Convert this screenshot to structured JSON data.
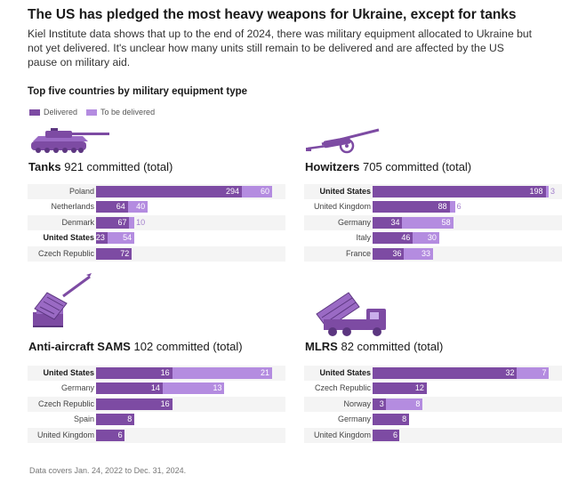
{
  "title": "The US has pledged the most heavy weapons for Ukraine, except for tanks",
  "subtitle": "Kiel Institute data shows that up to the end of 2024, there was military equipment allocated to Ukraine but not yet delivered. It's unclear how many units still remain to be delivered and are affected by the US pause on military aid.",
  "section_heading": "Top five countries by military equipment type",
  "legend": [
    {
      "label": "Delivered",
      "color": "#7d4ba3"
    },
    {
      "label": "To be delivered",
      "color": "#b48ce0"
    }
  ],
  "note": "Data covers Jan. 24, 2022 to Dec. 31, 2024.",
  "colors": {
    "delivered": "#7d4ba3",
    "to_be_delivered": "#b48ce0",
    "outside_label": "#a27fcc"
  },
  "chart_data": [
    {
      "type": "bar",
      "title": "Tanks",
      "subtitle": "921 committed (total)",
      "icon": "tank-icon",
      "categories": [
        "Poland",
        "Netherlands",
        "Denmark",
        "United States",
        "Czech Republic"
      ],
      "highlight": "United States",
      "series": [
        {
          "name": "Delivered",
          "values": [
            294,
            64,
            67,
            23,
            72
          ]
        },
        {
          "name": "To be delivered",
          "values": [
            60,
            40,
            10,
            54,
            0
          ]
        }
      ],
      "xlim": [
        0,
        354
      ]
    },
    {
      "type": "bar",
      "title": "Howitzers",
      "subtitle": "705 committed (total)",
      "icon": "howitzer-icon",
      "categories": [
        "United States",
        "United Kingdom",
        "Germany",
        "Italy",
        "France"
      ],
      "highlight": "United States",
      "series": [
        {
          "name": "Delivered",
          "values": [
            198,
            88,
            34,
            46,
            36
          ]
        },
        {
          "name": "To be delivered",
          "values": [
            3,
            6,
            58,
            30,
            33
          ]
        }
      ],
      "xlim": [
        0,
        201
      ]
    },
    {
      "type": "bar",
      "title": "Anti-aircraft SAMS",
      "subtitle": "102 committed (total)",
      "icon": "missile-launcher-icon",
      "categories": [
        "United States",
        "Germany",
        "Czech Republic",
        "Spain",
        "United Kingdom"
      ],
      "highlight": "United States",
      "series": [
        {
          "name": "Delivered",
          "values": [
            16,
            14,
            16,
            8,
            6
          ]
        },
        {
          "name": "To be delivered",
          "values": [
            21,
            13,
            0,
            0,
            0
          ]
        }
      ],
      "xlim": [
        0,
        37
      ]
    },
    {
      "type": "bar",
      "title": "MLRS",
      "subtitle": "82 committed (total)",
      "icon": "rocket-truck-icon",
      "categories": [
        "United States",
        "Czech Republic",
        "Norway",
        "Germany",
        "United Kingdom"
      ],
      "highlight": "United States",
      "series": [
        {
          "name": "Delivered",
          "values": [
            32,
            12,
            3,
            8,
            6
          ]
        },
        {
          "name": "To be delivered",
          "values": [
            7,
            0,
            8,
            0,
            0
          ]
        }
      ],
      "xlim": [
        0,
        39
      ]
    }
  ]
}
